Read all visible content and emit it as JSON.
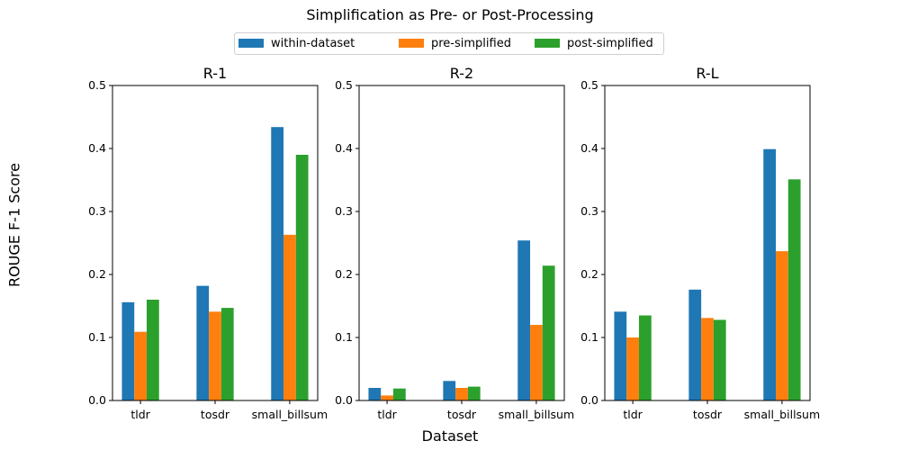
{
  "figure": {
    "title": "Simplification as Pre- or Post-Processing",
    "ylabel": "ROUGE F-1 Score",
    "xlabel": "Dataset"
  },
  "legend": [
    {
      "name": "within-dataset",
      "color": "#1f77b4"
    },
    {
      "name": "pre-simplified",
      "color": "#ff7f0e"
    },
    {
      "name": "post-simplified",
      "color": "#2ca02c"
    }
  ],
  "chart_data": [
    {
      "type": "bar",
      "title": "R-1",
      "categories": [
        "tldr",
        "tosdr",
        "small_billsum"
      ],
      "ylim": [
        0,
        0.5
      ],
      "yticks": [
        "0.0",
        "0.1",
        "0.2",
        "0.3",
        "0.4",
        "0.5"
      ],
      "series": [
        {
          "name": "within-dataset",
          "values": [
            0.156,
            0.182,
            0.434
          ]
        },
        {
          "name": "pre-simplified",
          "values": [
            0.109,
            0.141,
            0.263
          ]
        },
        {
          "name": "post-simplified",
          "values": [
            0.16,
            0.147,
            0.39
          ]
        }
      ]
    },
    {
      "type": "bar",
      "title": "R-2",
      "categories": [
        "tldr",
        "tosdr",
        "small_billsum"
      ],
      "ylim": [
        0,
        0.5
      ],
      "yticks": [
        "0.0",
        "0.1",
        "0.2",
        "0.3",
        "0.4",
        "0.5"
      ],
      "series": [
        {
          "name": "within-dataset",
          "values": [
            0.02,
            0.031,
            0.254
          ]
        },
        {
          "name": "pre-simplified",
          "values": [
            0.008,
            0.02,
            0.12
          ]
        },
        {
          "name": "post-simplified",
          "values": [
            0.019,
            0.022,
            0.214
          ]
        }
      ]
    },
    {
      "type": "bar",
      "title": "R-L",
      "categories": [
        "tldr",
        "tosdr",
        "small_billsum"
      ],
      "ylim": [
        0,
        0.5
      ],
      "yticks": [
        "0.0",
        "0.1",
        "0.2",
        "0.3",
        "0.4",
        "0.5"
      ],
      "series": [
        {
          "name": "within-dataset",
          "values": [
            0.141,
            0.176,
            0.399
          ]
        },
        {
          "name": "pre-simplified",
          "values": [
            0.1,
            0.131,
            0.237
          ]
        },
        {
          "name": "post-simplified",
          "values": [
            0.135,
            0.128,
            0.351
          ]
        }
      ]
    }
  ]
}
